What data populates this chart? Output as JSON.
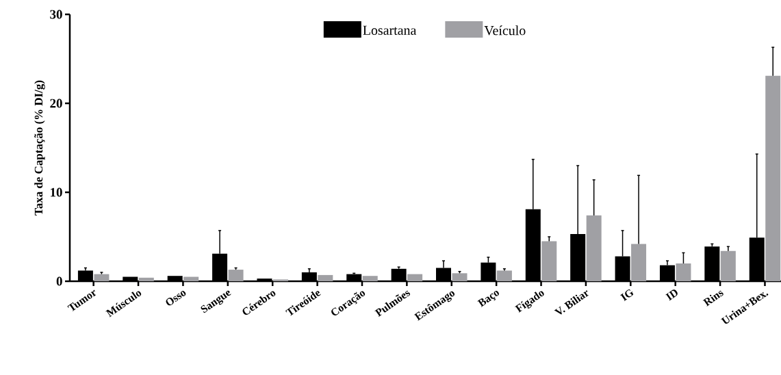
{
  "chart_data": {
    "type": "bar",
    "ylabel": "Taxa de Captação (% DI/g)",
    "categories": [
      "Tumor",
      "Músculo",
      "Osso",
      "Sangue",
      "Cérebro",
      "Tireóide",
      "Coração",
      "Pulmões",
      "Estômago",
      "Baço",
      "Fígado",
      "V. Biliar",
      "IG",
      "ID",
      "Rins",
      "Urina+Bex."
    ],
    "series": [
      {
        "name": "Losartana",
        "color": "#000000",
        "values": [
          1.2,
          0.5,
          0.6,
          3.1,
          0.3,
          1.0,
          0.8,
          1.4,
          1.5,
          2.1,
          8.1,
          5.3,
          2.8,
          1.8,
          3.9,
          4.9
        ],
        "errors": [
          [
            1.2,
            1.5
          ],
          null,
          null,
          [
            3.1,
            5.7
          ],
          null,
          [
            1.0,
            1.4
          ],
          [
            0.8,
            0.9
          ],
          [
            1.4,
            1.6
          ],
          [
            1.5,
            2.3
          ],
          [
            2.1,
            2.7
          ],
          [
            8.1,
            13.7
          ],
          [
            5.3,
            13.0
          ],
          [
            2.8,
            5.7
          ],
          [
            1.8,
            2.3
          ],
          [
            3.9,
            4.2
          ],
          [
            4.9,
            14.3
          ]
        ]
      },
      {
        "name": "Veículo",
        "color": "#a0a0a4",
        "values": [
          0.8,
          0.4,
          0.5,
          1.3,
          0.2,
          0.7,
          0.6,
          0.8,
          0.9,
          1.2,
          4.5,
          7.4,
          4.2,
          2.0,
          3.4,
          23.1
        ],
        "errors": [
          [
            0.8,
            1.0
          ],
          null,
          null,
          [
            1.3,
            1.5
          ],
          null,
          null,
          null,
          null,
          [
            0.9,
            1.1
          ],
          [
            1.2,
            1.4
          ],
          [
            4.5,
            5.0
          ],
          [
            7.4,
            11.4
          ],
          [
            4.2,
            11.9
          ],
          [
            2.0,
            3.2
          ],
          [
            3.4,
            3.9
          ],
          [
            23.1,
            26.3
          ]
        ]
      }
    ],
    "ylim": [
      0,
      30
    ],
    "yticks": [
      0,
      10,
      20,
      30
    ],
    "grid": false,
    "legend": "top"
  }
}
